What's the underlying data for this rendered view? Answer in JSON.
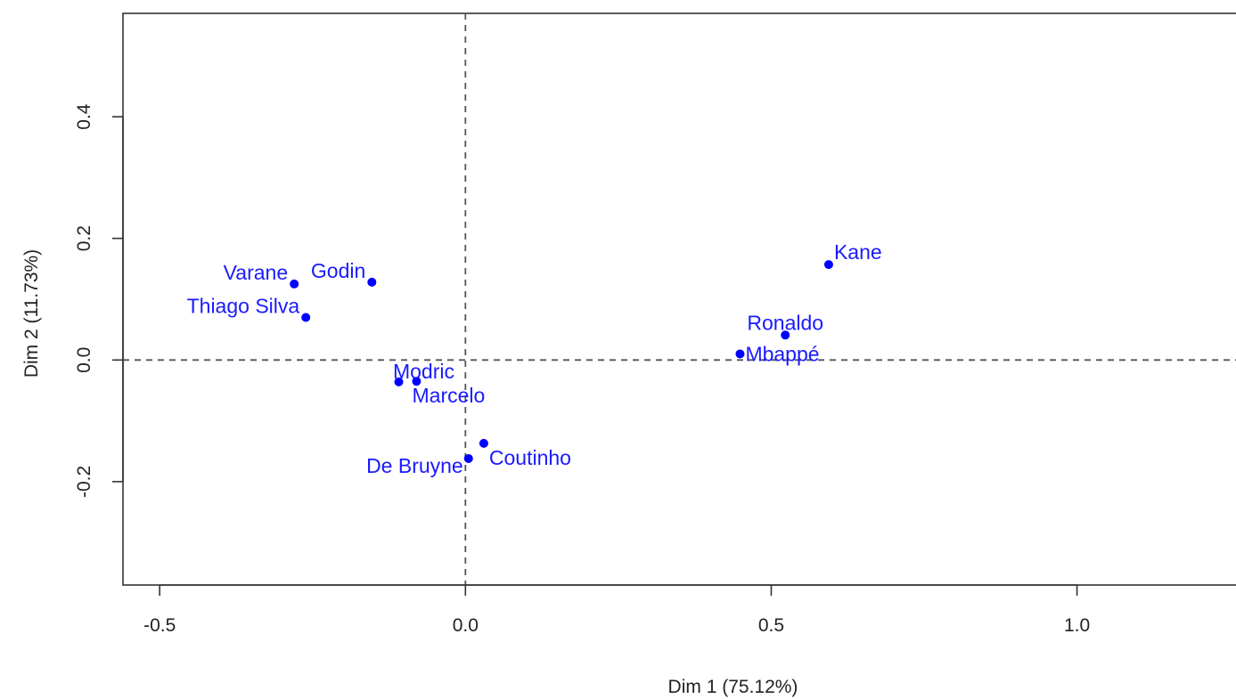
{
  "chart_data": {
    "type": "scatter",
    "title": "",
    "xlabel": "Dim 1 (75.12%)",
    "ylabel": "Dim 2 (11.73%)",
    "xlim": [
      -0.56,
      1.26
    ],
    "ylim": [
      -0.37,
      0.57
    ],
    "x_ticks": [
      -0.5,
      0.0,
      0.5,
      1.0
    ],
    "x_tick_labels": [
      "-0.5",
      "0.0",
      "0.5",
      "1.0"
    ],
    "y_ticks": [
      -0.2,
      0.0,
      0.2,
      0.4
    ],
    "y_tick_labels": [
      "-0.2",
      "0.0",
      "0.2",
      "0.4"
    ],
    "reference_lines": {
      "x": 0.0,
      "y": 0.0
    },
    "grid": false,
    "point_color": "#0000ff",
    "label_color": "#1a1aff",
    "points": [
      {
        "label": "Kane",
        "x": 0.594,
        "y": 0.157,
        "pos": "right-above"
      },
      {
        "label": "Ronaldo",
        "x": 0.523,
        "y": 0.041,
        "pos": "above"
      },
      {
        "label": "Mbappé",
        "x": 0.449,
        "y": 0.01,
        "pos": "right"
      },
      {
        "label": "Varane",
        "x": -0.28,
        "y": 0.125,
        "pos": "left-above"
      },
      {
        "label": "Godin",
        "x": -0.153,
        "y": 0.128,
        "pos": "left-above"
      },
      {
        "label": "Thiago Silva",
        "x": -0.261,
        "y": 0.07,
        "pos": "left-above"
      },
      {
        "label": "Modric",
        "x": -0.109,
        "y": -0.036,
        "pos": "above-right"
      },
      {
        "label": "Marcelo",
        "x": -0.08,
        "y": -0.035,
        "pos": "below"
      },
      {
        "label": "Coutinho",
        "x": 0.03,
        "y": -0.137,
        "pos": "right-below"
      },
      {
        "label": "De Bruyne",
        "x": 0.005,
        "y": -0.162,
        "pos": "left-below"
      }
    ]
  }
}
